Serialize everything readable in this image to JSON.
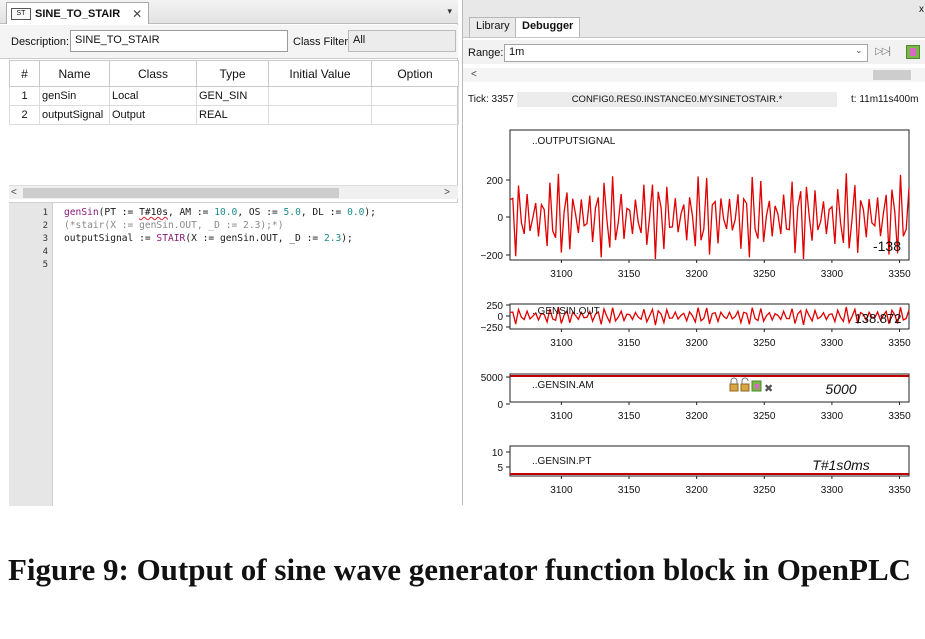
{
  "left": {
    "tab": {
      "icon": "ST",
      "title": "SINE_TO_STAIR",
      "close": "✕"
    },
    "menu_arrow": "▾",
    "description_label": "Description:",
    "description_value": "SINE_TO_STAIR",
    "class_filter_label": "Class Filter:",
    "class_filter_value": "All",
    "table": {
      "headers": [
        "#",
        "Name",
        "Class",
        "Type",
        "Initial Value",
        "Option"
      ],
      "rows": [
        [
          "1",
          "genSin",
          "Local",
          "GEN_SIN",
          "",
          ""
        ],
        [
          "2",
          "outputSignal",
          "Output",
          "REAL",
          "",
          ""
        ]
      ]
    },
    "scroll_left": "<",
    "scroll_right": ">",
    "code": {
      "line_numbers": [
        "1",
        "2",
        "3",
        "4",
        "5"
      ],
      "line1": {
        "fb": "genSin",
        "pre": "(PT := ",
        "sq": "T#10s",
        "mid1": ", AM := ",
        "n1": "10.0",
        "mid2": ", OS := ",
        "n2": "5.0",
        "mid3": ", DL := ",
        "n3": "0.0",
        "post": ");"
      },
      "line2": "(*stair(X := genSin.OUT, _D := 2.3);*)",
      "line3": {
        "pre": "outputSignal := ",
        "fb": "STAIR",
        "mid": "(X := genSin.OUT, _D := ",
        "n": "2.3",
        "post": ");"
      }
    }
  },
  "right": {
    "tabs": [
      "Library",
      "Debugger"
    ],
    "close": "x",
    "range_label": "Range:",
    "range_value": "1m",
    "range_chevron": "⌄",
    "ff_icon": "▷▷|",
    "scroll_left": "<",
    "tick_label": "Tick: 3357",
    "tick_path": "CONFIG0.RES0.INSTANCE0.MYSINETOSTAIR.*",
    "tick_time": "t: 11m11s400m",
    "icons": [
      "lock-icon",
      "lock-open-icon",
      "export-icon",
      "delete-icon"
    ],
    "delete_glyph": "✖",
    "plots": [
      {
        "label": "..OUTPUTSIGNAL",
        "value": "-138",
        "yticks": [
          "200",
          "0",
          "−200"
        ],
        "color": "#e00000"
      },
      {
        "label": "..GENSIN.OUT",
        "value": "138.872",
        "yticks": [
          "250",
          "0",
          "−250"
        ],
        "color": "#e00000"
      },
      {
        "label": "..GENSIN.AM",
        "value": "5000",
        "yticks": [
          "5000",
          "0"
        ],
        "color": "#c00000"
      },
      {
        "label": "..GENSIN.PT",
        "value": "T#1s0ms",
        "yticks": [
          "10",
          "5"
        ],
        "color": "#c00000"
      }
    ],
    "xticks": [
      "3100",
      "3150",
      "3200",
      "3250",
      "3300",
      "3350"
    ]
  },
  "caption": "Figure 9: Output of sine wave generator function block in OpenPLC",
  "chart_data": [
    {
      "type": "line",
      "title": "..OUTPUTSIGNAL",
      "x_range": [
        3062,
        3357
      ],
      "xticks": [
        3100,
        3150,
        3200,
        3250,
        3300,
        3350
      ],
      "ylim": [
        -300,
        300
      ],
      "yticks": [
        200,
        0,
        -200
      ],
      "amplitude": 240,
      "current_value": -138
    },
    {
      "type": "line",
      "title": "..GENSIN.OUT",
      "x_range": [
        3062,
        3357
      ],
      "xticks": [
        3100,
        3150,
        3200,
        3250,
        3300,
        3350
      ],
      "ylim": [
        -300,
        300
      ],
      "yticks": [
        250,
        0,
        -250
      ],
      "amplitude": 240,
      "current_value": 138.872
    },
    {
      "type": "line",
      "title": "..GENSIN.AM",
      "x_range": [
        3062,
        3357
      ],
      "xticks": [
        3100,
        3150,
        3200,
        3250,
        3300,
        3350
      ],
      "yticks": [
        5000,
        0
      ],
      "constant": 5000
    },
    {
      "type": "line",
      "title": "..GENSIN.PT",
      "x_range": [
        3062,
        3357
      ],
      "xticks": [
        3100,
        3150,
        3200,
        3250,
        3300,
        3350
      ],
      "yticks": [
        10,
        5
      ],
      "constant": 1
    }
  ]
}
